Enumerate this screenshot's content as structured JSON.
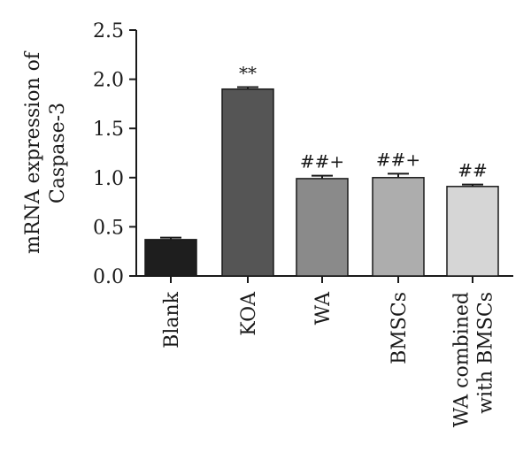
{
  "chart_data": {
    "type": "bar",
    "ylabel_lines": [
      "mRNA expression of",
      "Caspase-3"
    ],
    "xlabel": "",
    "ylim": [
      0,
      2.5
    ],
    "yticks": [
      "0.0",
      "0.5",
      "1.0",
      "1.5",
      "2.0",
      "2.5"
    ],
    "categories": [
      {
        "lines": [
          "Blank"
        ]
      },
      {
        "lines": [
          "KOA"
        ]
      },
      {
        "lines": [
          "WA"
        ]
      },
      {
        "lines": [
          "BMSCs"
        ]
      },
      {
        "lines": [
          "WA combined",
          "with BMSCs"
        ]
      }
    ],
    "values": [
      0.37,
      1.9,
      0.99,
      1.0,
      0.91
    ],
    "errors": [
      0.02,
      0.02,
      0.03,
      0.04,
      0.02
    ],
    "annotations": [
      "",
      "**",
      "##+",
      "##+",
      "##"
    ],
    "bar_colors": [
      "#1e1e1e",
      "#555555",
      "#8a8a8a",
      "#adadad",
      "#d6d6d6"
    ],
    "grid": false
  }
}
